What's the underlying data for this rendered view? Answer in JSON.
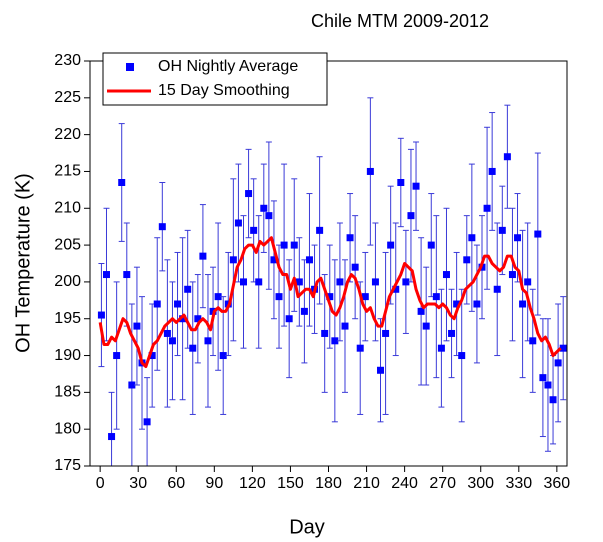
{
  "chart_data": {
    "type": "scatter",
    "title": "Chile MTM 2009-2012",
    "x_label": "Day",
    "y_label": "OH Temperature (K)",
    "xlim": [
      -8,
      368
    ],
    "xticks": [
      0,
      30,
      60,
      90,
      120,
      150,
      180,
      210,
      240,
      270,
      300,
      330,
      360
    ],
    "ylim": [
      175,
      230
    ],
    "yticks": [
      175,
      180,
      185,
      190,
      195,
      200,
      205,
      210,
      215,
      220,
      225,
      230
    ],
    "legend": "upper left",
    "series": [
      {
        "name": "OH Nightly Average",
        "type": "scatter",
        "color": "#0000ff",
        "error_color": "#3a3ad8",
        "x": [
          1,
          5,
          9,
          13,
          17,
          21,
          25,
          29,
          33,
          37,
          41,
          45,
          49,
          53,
          57,
          61,
          65,
          69,
          73,
          77,
          81,
          85,
          89,
          93,
          97,
          101,
          105,
          109,
          113,
          117,
          121,
          125,
          129,
          133,
          137,
          141,
          145,
          149,
          153,
          157,
          161,
          165,
          169,
          173,
          177,
          181,
          185,
          189,
          193,
          197,
          201,
          205,
          209,
          213,
          217,
          221,
          225,
          229,
          233,
          237,
          241,
          245,
          249,
          253,
          257,
          261,
          265,
          269,
          273,
          277,
          281,
          285,
          289,
          293,
          297,
          301,
          305,
          309,
          313,
          317,
          321,
          325,
          329,
          333,
          337,
          341,
          345,
          349,
          353,
          357,
          361,
          365
        ],
        "values": [
          195.5,
          201,
          179,
          190,
          213.5,
          201,
          186,
          194,
          189,
          181,
          190,
          197,
          207.5,
          193,
          192,
          197,
          195,
          199,
          191,
          195,
          203.5,
          192,
          196,
          198,
          190,
          197,
          203,
          208,
          200,
          212,
          207,
          200,
          210,
          209,
          203,
          198,
          205,
          195,
          205,
          200,
          196,
          203,
          199,
          207,
          193,
          198,
          192,
          200,
          194,
          206,
          202,
          191,
          198,
          215,
          200,
          188,
          193,
          205,
          199,
          213.5,
          200,
          209,
          213,
          196,
          194,
          205,
          198,
          191,
          201,
          193,
          197,
          190,
          203,
          206,
          197,
          202,
          210,
          215,
          199,
          207,
          217,
          201,
          206,
          197,
          200,
          192,
          206.5,
          187,
          186,
          184,
          189,
          191
        ],
        "errors": [
          7,
          9,
          6,
          10,
          8,
          7,
          11,
          8,
          9,
          6,
          7,
          9,
          6,
          10,
          8,
          7,
          11,
          8,
          9,
          6,
          7,
          9,
          6,
          10,
          8,
          7,
          11,
          8,
          9,
          6,
          7,
          9,
          6,
          10,
          8,
          7,
          11,
          8,
          9,
          6,
          7,
          9,
          6,
          10,
          8,
          7,
          11,
          8,
          9,
          6,
          7,
          9,
          6,
          10,
          8,
          7,
          11,
          8,
          9,
          6,
          7,
          9,
          6,
          10,
          8,
          7,
          11,
          8,
          9,
          6,
          7,
          9,
          6,
          10,
          8,
          7,
          11,
          8,
          9,
          6,
          7,
          9,
          6,
          10,
          8,
          7,
          11,
          8,
          9,
          6,
          8,
          7
        ]
      },
      {
        "name": "15 Day Smoothing",
        "type": "line",
        "color": "#ff0000",
        "x": [
          0,
          3,
          6,
          9,
          12,
          15,
          18,
          21,
          24,
          27,
          30,
          33,
          36,
          39,
          42,
          45,
          48,
          51,
          54,
          57,
          60,
          63,
          66,
          69,
          72,
          75,
          78,
          81,
          84,
          87,
          90,
          93,
          96,
          99,
          102,
          105,
          108,
          111,
          114,
          117,
          120,
          123,
          126,
          129,
          132,
          135,
          138,
          141,
          144,
          147,
          150,
          153,
          156,
          159,
          162,
          165,
          168,
          171,
          174,
          177,
          180,
          183,
          186,
          189,
          192,
          195,
          198,
          201,
          204,
          207,
          210,
          213,
          216,
          219,
          222,
          225,
          228,
          231,
          234,
          237,
          240,
          243,
          246,
          249,
          252,
          255,
          258,
          261,
          264,
          267,
          270,
          273,
          276,
          279,
          282,
          285,
          288,
          291,
          294,
          297,
          300,
          303,
          306,
          309,
          312,
          315,
          318,
          321,
          324,
          327,
          330,
          333,
          336,
          339,
          342,
          345,
          348,
          351,
          354,
          357,
          360,
          363
        ],
        "values": [
          194.5,
          191.5,
          191.5,
          192.5,
          192,
          193.5,
          195,
          194.5,
          193,
          192,
          191,
          189,
          188.5,
          190,
          191.5,
          192,
          193,
          194,
          194.5,
          195,
          194.5,
          195,
          195.5,
          194.5,
          193.5,
          193.5,
          194.5,
          195,
          194.5,
          193.5,
          196,
          196.5,
          196,
          196,
          197,
          199.5,
          202,
          203,
          204.5,
          205,
          205,
          204,
          205.5,
          205,
          205.5,
          206,
          204,
          202,
          201,
          201,
          199,
          200.5,
          198,
          198.5,
          199,
          199,
          198,
          200,
          200.5,
          199,
          197.5,
          196,
          195.5,
          196.5,
          198,
          200,
          201,
          200.5,
          199,
          197,
          196,
          196.5,
          195,
          194,
          194,
          196,
          198,
          199,
          200,
          201,
          202.5,
          202,
          201.5,
          199,
          197.5,
          196.5,
          197,
          197,
          197,
          196.5,
          197,
          196.5,
          195.5,
          195,
          196.5,
          197.5,
          199,
          199.5,
          200,
          201,
          202,
          203.5,
          203.5,
          202.5,
          202,
          201.5,
          202,
          203.5,
          203.5,
          202,
          201.5,
          199,
          198.5,
          196.5,
          195,
          193,
          192,
          192.5,
          191.5,
          190,
          190.5,
          191
        ]
      }
    ]
  }
}
